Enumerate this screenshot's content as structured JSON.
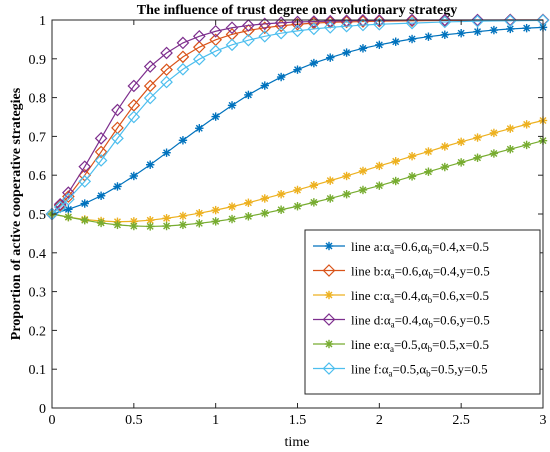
{
  "chart_data": {
    "type": "line",
    "title": "The influence of trust degree on evolutionary strategy",
    "xlabel": "time",
    "ylabel": "Proportion of active cooperative strategies",
    "xlim": [
      0,
      3
    ],
    "ylim": [
      0,
      1
    ],
    "xticks": [
      "0",
      "0.5",
      "1",
      "1.5",
      "2",
      "2.5",
      "3"
    ],
    "yticks": [
      "0",
      "0.1",
      "0.2",
      "0.3",
      "0.4",
      "0.5",
      "0.6",
      "0.7",
      "0.8",
      "0.9",
      "1"
    ],
    "grid": false,
    "legend_position": "bottom-right",
    "series": [
      {
        "name": "line a:αa=0.6,αb=0.4,x=0.5",
        "legend_parts": [
          "line a:",
          "α",
          "a",
          "=0.6,",
          "α",
          "b",
          "=0.4,x=0.5"
        ],
        "color": "#0072BD",
        "marker": "asterisk",
        "x": [
          0,
          0.1,
          0.2,
          0.3,
          0.4,
          0.5,
          0.6,
          0.7,
          0.8,
          0.9,
          1.0,
          1.1,
          1.2,
          1.3,
          1.4,
          1.5,
          1.6,
          1.7,
          1.8,
          1.9,
          2.0,
          2.1,
          2.2,
          2.3,
          2.4,
          2.5,
          2.6,
          2.7,
          2.8,
          2.9,
          3.0
        ],
        "y": [
          0.5,
          0.512,
          0.527,
          0.547,
          0.571,
          0.598,
          0.627,
          0.658,
          0.69,
          0.721,
          0.751,
          0.78,
          0.807,
          0.831,
          0.853,
          0.872,
          0.889,
          0.903,
          0.916,
          0.927,
          0.936,
          0.944,
          0.951,
          0.957,
          0.962,
          0.966,
          0.97,
          0.974,
          0.977,
          0.979,
          0.981
        ]
      },
      {
        "name": "line b:αa=0.6,αb=0.4,y=0.5",
        "legend_parts": [
          "line b:",
          "α",
          "a",
          "=0.6,",
          "α",
          "b",
          "=0.4,y=0.5"
        ],
        "color": "#D95319",
        "marker": "diamond",
        "x": [
          0,
          0.05,
          0.1,
          0.2,
          0.3,
          0.4,
          0.5,
          0.6,
          0.7,
          0.8,
          0.9,
          1.0,
          1.1,
          1.2,
          1.3,
          1.4,
          1.5,
          1.6,
          1.7,
          1.8,
          1.9,
          2.0,
          2.2,
          2.4,
          2.6,
          2.8,
          3.0
        ],
        "y": [
          0.5,
          0.522,
          0.545,
          0.6,
          0.66,
          0.722,
          0.78,
          0.83,
          0.872,
          0.905,
          0.93,
          0.949,
          0.963,
          0.973,
          0.98,
          0.985,
          0.989,
          0.992,
          0.994,
          0.995,
          0.996,
          0.997,
          0.998,
          0.999,
          0.999,
          1.0,
          1.0
        ]
      },
      {
        "name": "line c:αa=0.4,αb=0.6,x=0.5",
        "legend_parts": [
          "line c:",
          "α",
          "a",
          "=0.4,",
          "α",
          "b",
          "=0.6,x=0.5"
        ],
        "color": "#EDB120",
        "marker": "asterisk",
        "x": [
          0,
          0.1,
          0.2,
          0.3,
          0.4,
          0.5,
          0.6,
          0.7,
          0.8,
          0.9,
          1.0,
          1.1,
          1.2,
          1.3,
          1.4,
          1.5,
          1.6,
          1.7,
          1.8,
          1.9,
          2.0,
          2.1,
          2.2,
          2.3,
          2.4,
          2.5,
          2.6,
          2.7,
          2.8,
          2.9,
          3.0
        ],
        "y": [
          0.5,
          0.492,
          0.486,
          0.482,
          0.48,
          0.481,
          0.484,
          0.489,
          0.495,
          0.502,
          0.51,
          0.519,
          0.529,
          0.54,
          0.551,
          0.562,
          0.574,
          0.586,
          0.598,
          0.611,
          0.624,
          0.636,
          0.649,
          0.661,
          0.674,
          0.686,
          0.697,
          0.709,
          0.72,
          0.731,
          0.741
        ]
      },
      {
        "name": "line d:αa=0.4,αb=0.6,y=0.5",
        "legend_parts": [
          "line d:",
          "α",
          "a",
          "=0.4,",
          "α",
          "b",
          "=0.6,y=0.5"
        ],
        "color": "#7E2F8E",
        "marker": "diamond",
        "x": [
          0,
          0.05,
          0.1,
          0.2,
          0.3,
          0.4,
          0.5,
          0.6,
          0.7,
          0.8,
          0.9,
          1.0,
          1.1,
          1.2,
          1.3,
          1.4,
          1.5,
          1.6,
          1.7,
          1.8,
          1.9,
          2.0,
          2.2,
          2.4,
          2.6,
          2.8,
          3.0
        ],
        "y": [
          0.5,
          0.525,
          0.555,
          0.622,
          0.695,
          0.768,
          0.83,
          0.88,
          0.915,
          0.941,
          0.958,
          0.971,
          0.98,
          0.986,
          0.99,
          0.993,
          0.995,
          0.996,
          0.997,
          0.998,
          0.999,
          0.999,
          1.0,
          1.0,
          1.0,
          1.0,
          1.0
        ]
      },
      {
        "name": "line e:αa=0.5,αb=0.5,x=0.5",
        "legend_parts": [
          "line e:",
          "α",
          "a",
          "=0.5,",
          "α",
          "b",
          "=0.5,x=0.5"
        ],
        "color": "#77AC30",
        "marker": "asterisk",
        "x": [
          0,
          0.1,
          0.2,
          0.3,
          0.4,
          0.5,
          0.6,
          0.7,
          0.8,
          0.9,
          1.0,
          1.1,
          1.2,
          1.3,
          1.4,
          1.5,
          1.6,
          1.7,
          1.8,
          1.9,
          2.0,
          2.1,
          2.2,
          2.3,
          2.4,
          2.5,
          2.6,
          2.7,
          2.8,
          2.9,
          3.0
        ],
        "y": [
          0.5,
          0.492,
          0.484,
          0.477,
          0.472,
          0.469,
          0.468,
          0.469,
          0.472,
          0.476,
          0.481,
          0.487,
          0.494,
          0.502,
          0.511,
          0.52,
          0.53,
          0.54,
          0.551,
          0.562,
          0.573,
          0.585,
          0.597,
          0.609,
          0.621,
          0.633,
          0.645,
          0.656,
          0.667,
          0.678,
          0.689
        ]
      },
      {
        "name": "line f:αa=0.5,αb=0.5,y=0.5",
        "legend_parts": [
          "line f:",
          "α",
          "a",
          "=0.5,",
          "α",
          "b",
          "=0.5,y=0.5"
        ],
        "color": "#4DBEEE",
        "marker": "diamond",
        "x": [
          0,
          0.05,
          0.1,
          0.2,
          0.3,
          0.4,
          0.5,
          0.6,
          0.7,
          0.8,
          0.9,
          1.0,
          1.1,
          1.2,
          1.3,
          1.4,
          1.5,
          1.6,
          1.7,
          1.8,
          1.9,
          2.0,
          2.2,
          2.4,
          2.6,
          2.8,
          3.0
        ],
        "y": [
          0.5,
          0.518,
          0.538,
          0.584,
          0.638,
          0.695,
          0.75,
          0.799,
          0.84,
          0.873,
          0.899,
          0.92,
          0.936,
          0.948,
          0.958,
          0.966,
          0.972,
          0.977,
          0.981,
          0.984,
          0.987,
          0.989,
          0.992,
          0.995,
          0.997,
          0.998,
          0.999
        ]
      }
    ]
  }
}
